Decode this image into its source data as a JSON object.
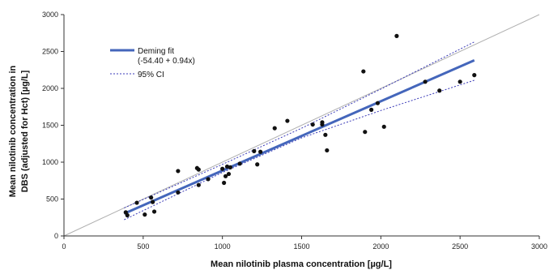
{
  "chart_data": {
    "type": "scatter",
    "title": "",
    "xlabel": "Mean nilotinib plasma concentration [µg/L]",
    "ylabel_lines": [
      "Mean nilotinib concentration in",
      "DBS (adjusted for Hct) [µg/L]"
    ],
    "xlim": [
      0,
      3000
    ],
    "ylim": [
      0,
      3000
    ],
    "x_ticks": [
      0,
      500,
      1000,
      1500,
      2000,
      2500,
      3000
    ],
    "y_ticks": [
      0,
      500,
      1000,
      1500,
      2000,
      2500,
      3000
    ],
    "grid": false,
    "legend": {
      "placement": "top-left",
      "entries": [
        {
          "label": "Deming fit",
          "sublabel": "(-54.40 + 0.94x)",
          "style": "solid",
          "color": "#4466bb"
        },
        {
          "label": "95% CI",
          "style": "dotted",
          "color": "#3b3bb8"
        }
      ]
    },
    "points": [
      [
        390,
        320
      ],
      [
        400,
        280
      ],
      [
        460,
        450
      ],
      [
        510,
        290
      ],
      [
        550,
        520
      ],
      [
        560,
        460
      ],
      [
        570,
        330
      ],
      [
        720,
        880
      ],
      [
        720,
        590
      ],
      [
        840,
        920
      ],
      [
        850,
        690
      ],
      [
        850,
        900
      ],
      [
        910,
        770
      ],
      [
        1000,
        910
      ],
      [
        1010,
        720
      ],
      [
        1020,
        810
      ],
      [
        1030,
        940
      ],
      [
        1040,
        840
      ],
      [
        1050,
        930
      ],
      [
        1110,
        980
      ],
      [
        1200,
        1150
      ],
      [
        1220,
        970
      ],
      [
        1240,
        1140
      ],
      [
        1330,
        1460
      ],
      [
        1410,
        1560
      ],
      [
        1570,
        1510
      ],
      [
        1630,
        1510
      ],
      [
        1630,
        1540
      ],
      [
        1650,
        1370
      ],
      [
        1660,
        1160
      ],
      [
        1890,
        2230
      ],
      [
        1900,
        1410
      ],
      [
        1940,
        1710
      ],
      [
        1980,
        1800
      ],
      [
        2020,
        1480
      ],
      [
        2100,
        2710
      ],
      [
        2280,
        2090
      ],
      [
        2370,
        1970
      ],
      [
        2500,
        2090
      ],
      [
        2590,
        2180
      ]
    ],
    "deming_fit": {
      "intercept": -54.4,
      "slope": 0.94,
      "x_range": [
        380,
        2590
      ]
    },
    "ci_upper": [
      [
        380,
        380
      ],
      [
        1000,
        970
      ],
      [
        1500,
        1460
      ],
      [
        2000,
        1990
      ],
      [
        2590,
        2630
      ]
    ],
    "ci_lower": [
      [
        380,
        220
      ],
      [
        1000,
        860
      ],
      [
        1500,
        1330
      ],
      [
        2000,
        1700
      ],
      [
        2590,
        2110
      ]
    ],
    "identity_line": {
      "x": [
        0,
        3000
      ],
      "y": [
        0,
        3000
      ]
    },
    "colors": {
      "fit": "#4466bb",
      "ci": "#3b3bb8",
      "identity": "#b0b0b0",
      "points": "#111111",
      "axis": "#333333"
    }
  }
}
